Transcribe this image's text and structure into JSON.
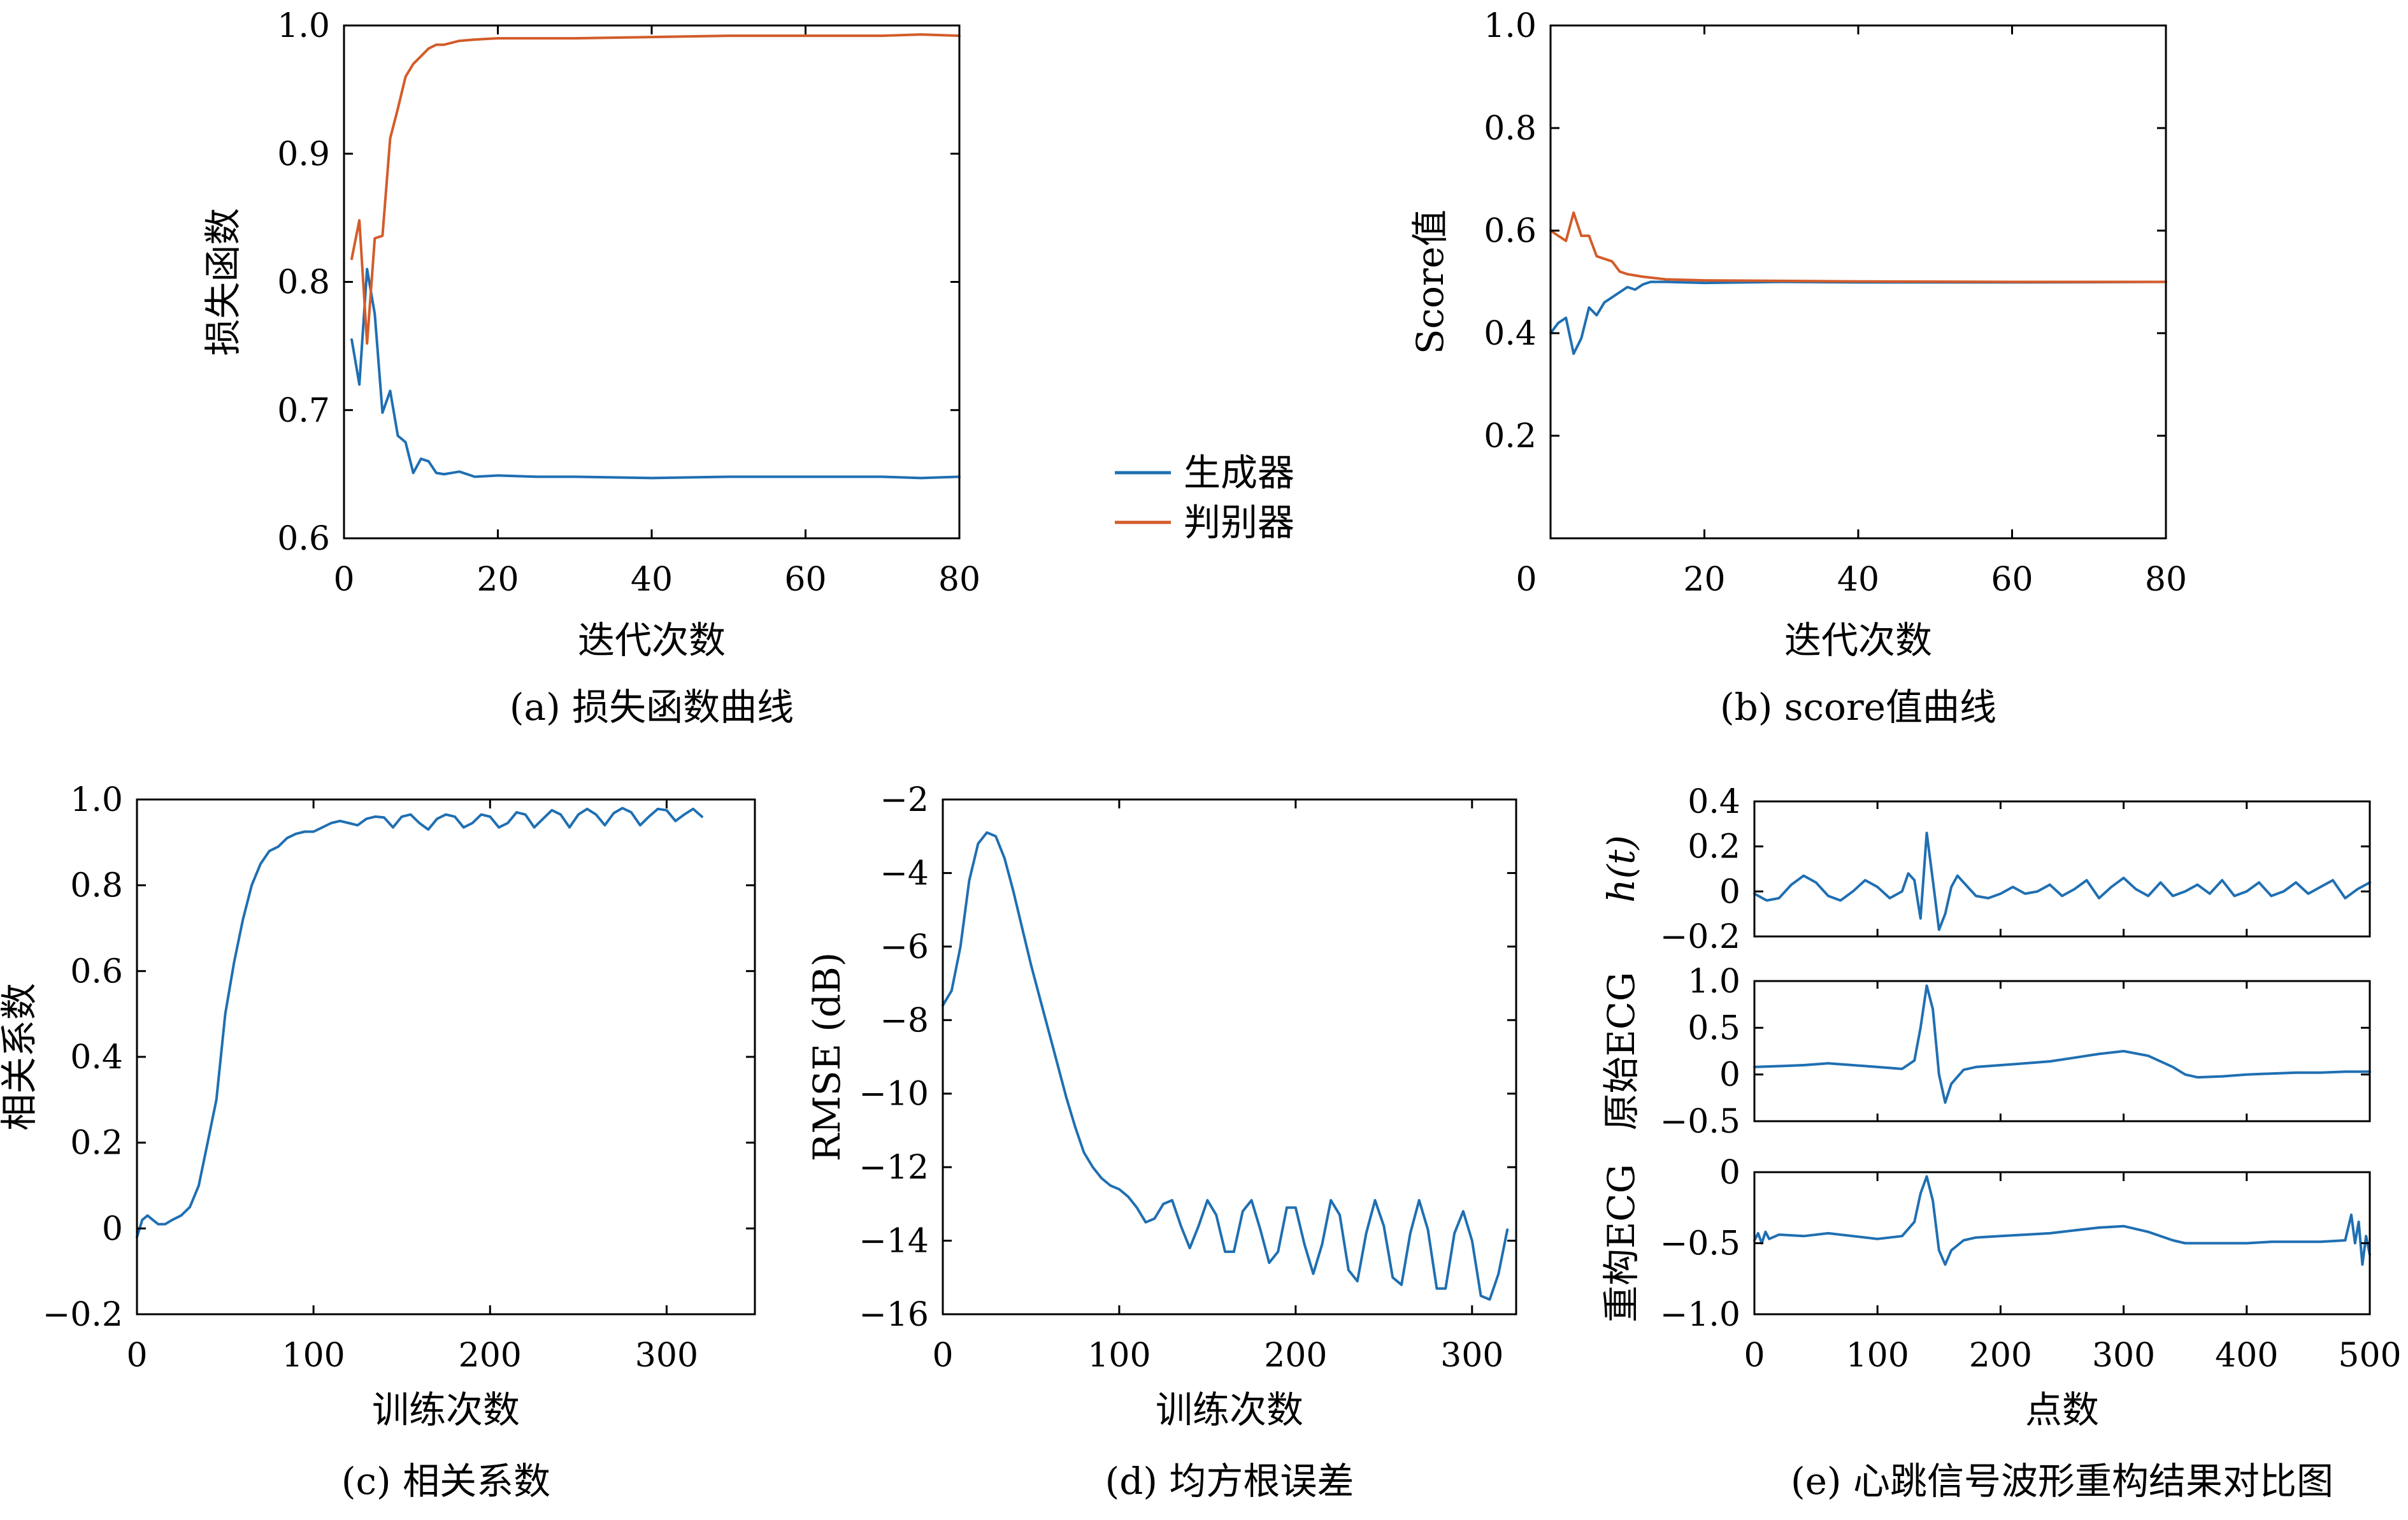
{
  "colors": {
    "blue": "#1f6fb2",
    "orange": "#d35c2a"
  },
  "chart_data": [
    {
      "id": "a",
      "type": "line",
      "caption": "(a) 损失函数曲线",
      "xlabel": "迭代次数",
      "ylabel": "损失函数",
      "xlim": [
        0,
        80
      ],
      "ylim": [
        0.6,
        1.0
      ],
      "xticks": [
        0,
        20,
        40,
        60,
        80
      ],
      "xtick_labels": [
        "0",
        "20",
        "40",
        "60",
        "80"
      ],
      "yticks": [
        0.6,
        0.7,
        0.8,
        0.9,
        1.0
      ],
      "ytick_labels": [
        "0.6",
        "0.7",
        "0.8",
        "0.9",
        "1.0"
      ],
      "grid": false,
      "legend_position": "outside-right",
      "series": [
        {
          "name": "生成器",
          "color": "#1f6fb2",
          "x": [
            1,
            2,
            3,
            4,
            5,
            6,
            7,
            8,
            9,
            10,
            11,
            12,
            13,
            15,
            17,
            20,
            25,
            30,
            40,
            50,
            60,
            70,
            75,
            80
          ],
          "y": [
            0.755,
            0.72,
            0.81,
            0.775,
            0.698,
            0.715,
            0.68,
            0.675,
            0.651,
            0.662,
            0.66,
            0.651,
            0.65,
            0.652,
            0.648,
            0.649,
            0.648,
            0.648,
            0.647,
            0.648,
            0.648,
            0.648,
            0.647,
            0.648
          ]
        },
        {
          "name": "判别器",
          "color": "#d35c2a",
          "x": [
            1,
            2,
            3,
            4,
            5,
            6,
            7,
            8,
            9,
            10,
            11,
            12,
            13,
            15,
            17,
            20,
            25,
            30,
            40,
            50,
            60,
            70,
            75,
            80
          ],
          "y": [
            0.818,
            0.848,
            0.752,
            0.834,
            0.836,
            0.912,
            0.935,
            0.96,
            0.97,
            0.976,
            0.982,
            0.985,
            0.985,
            0.988,
            0.989,
            0.99,
            0.99,
            0.99,
            0.991,
            0.992,
            0.992,
            0.992,
            0.993,
            0.992
          ]
        }
      ]
    },
    {
      "id": "b",
      "type": "line",
      "caption": "(b) score值曲线",
      "xlabel": "迭代次数",
      "ylabel": "Score值",
      "xlim": [
        0,
        80
      ],
      "ylim": [
        0,
        1.0
      ],
      "xticks": [
        20,
        40,
        60,
        80
      ],
      "xtick_labels": [
        "20",
        "40",
        "60",
        "80"
      ],
      "corner_label": "0",
      "yticks": [
        0.2,
        0.4,
        0.6,
        0.8,
        1.0
      ],
      "ytick_labels": [
        "0.2",
        "0.4",
        "0.6",
        "0.8",
        "1.0"
      ],
      "grid": false,
      "series": [
        {
          "color": "#1f6fb2",
          "x": [
            0,
            1,
            2,
            3,
            4,
            5,
            6,
            7,
            8,
            9,
            10,
            11,
            12,
            13,
            15,
            20,
            30,
            40,
            60,
            80
          ],
          "y": [
            0.4,
            0.42,
            0.43,
            0.36,
            0.39,
            0.45,
            0.435,
            0.46,
            0.47,
            0.48,
            0.49,
            0.485,
            0.495,
            0.5,
            0.5,
            0.498,
            0.5,
            0.499,
            0.499,
            0.5
          ]
        },
        {
          "color": "#d35c2a",
          "x": [
            0,
            1,
            2,
            3,
            4,
            5,
            6,
            7,
            8,
            9,
            10,
            12,
            15,
            20,
            30,
            40,
            60,
            80
          ],
          "y": [
            0.6,
            0.59,
            0.58,
            0.635,
            0.59,
            0.59,
            0.55,
            0.545,
            0.54,
            0.52,
            0.515,
            0.51,
            0.505,
            0.503,
            0.502,
            0.501,
            0.5,
            0.5
          ]
        }
      ]
    },
    {
      "id": "c",
      "type": "line",
      "caption": "(c) 相关系数",
      "xlabel": "训练次数",
      "ylabel": "相关系数",
      "xlim": [
        0,
        350
      ],
      "ylim": [
        -0.2,
        1.0
      ],
      "xticks": [
        0,
        100,
        200,
        300
      ],
      "xtick_labels": [
        "0",
        "100",
        "200",
        "300"
      ],
      "yticks": [
        -0.2,
        0,
        0.2,
        0.4,
        0.6,
        0.8,
        1.0
      ],
      "ytick_labels": [
        "−0.2",
        "0",
        "0.2",
        "0.4",
        "0.6",
        "0.8",
        "1.0"
      ],
      "grid": false,
      "series": [
        {
          "color": "#1f6fb2",
          "x": [
            0,
            3,
            6,
            9,
            12,
            16,
            20,
            25,
            30,
            35,
            40,
            45,
            50,
            55,
            60,
            65,
            70,
            75,
            80,
            85,
            90,
            95,
            100,
            105,
            110,
            115,
            120,
            125,
            130,
            135,
            140,
            145,
            150,
            155,
            160,
            165,
            170,
            175,
            180,
            185,
            190,
            195,
            200,
            205,
            210,
            215,
            220,
            225,
            230,
            235,
            240,
            245,
            250,
            255,
            260,
            265,
            270,
            275,
            280,
            285,
            290,
            295,
            300,
            305,
            310,
            315,
            320
          ],
          "y": [
            -0.02,
            0.02,
            0.03,
            0.02,
            0.01,
            0.01,
            0.02,
            0.03,
            0.05,
            0.1,
            0.2,
            0.3,
            0.5,
            0.62,
            0.72,
            0.8,
            0.85,
            0.88,
            0.89,
            0.91,
            0.92,
            0.925,
            0.925,
            0.935,
            0.945,
            0.95,
            0.945,
            0.94,
            0.955,
            0.96,
            0.958,
            0.935,
            0.96,
            0.965,
            0.945,
            0.93,
            0.955,
            0.965,
            0.96,
            0.935,
            0.945,
            0.965,
            0.96,
            0.935,
            0.945,
            0.97,
            0.965,
            0.935,
            0.955,
            0.975,
            0.965,
            0.935,
            0.965,
            0.978,
            0.965,
            0.94,
            0.968,
            0.98,
            0.97,
            0.94,
            0.96,
            0.978,
            0.975,
            0.95,
            0.965,
            0.978,
            0.96
          ]
        }
      ]
    },
    {
      "id": "d",
      "type": "line",
      "caption": "(d) 均方根误差",
      "xlabel": "训练次数",
      "ylabel": "RMSE (dB)",
      "xlim": [
        0,
        325
      ],
      "ylim": [
        -16,
        -2
      ],
      "xticks": [
        0,
        100,
        200,
        300
      ],
      "xtick_labels": [
        "0",
        "100",
        "200",
        "300"
      ],
      "yticks": [
        -16,
        -14,
        -12,
        -10,
        -8,
        -6,
        -4,
        -2
      ],
      "ytick_labels": [
        "−16",
        "−14",
        "−12",
        "−10",
        "−8",
        "−6",
        "−4",
        "−2"
      ],
      "grid": false,
      "series": [
        {
          "color": "#1f6fb2",
          "x": [
            0,
            5,
            10,
            15,
            20,
            25,
            30,
            35,
            40,
            45,
            50,
            55,
            60,
            65,
            70,
            75,
            80,
            85,
            90,
            95,
            100,
            105,
            110,
            115,
            120,
            125,
            130,
            135,
            140,
            145,
            150,
            155,
            160,
            165,
            170,
            175,
            180,
            185,
            190,
            195,
            200,
            205,
            210,
            215,
            220,
            225,
            230,
            235,
            240,
            245,
            250,
            255,
            260,
            265,
            270,
            275,
            280,
            285,
            290,
            295,
            300,
            305,
            310,
            315,
            320
          ],
          "y": [
            -7.6,
            -7.2,
            -6,
            -4.2,
            -3.2,
            -2.9,
            -3,
            -3.6,
            -4.5,
            -5.5,
            -6.5,
            -7.4,
            -8.3,
            -9.2,
            -10.1,
            -10.9,
            -11.6,
            -12,
            -12.3,
            -12.5,
            -12.6,
            -12.8,
            -13.1,
            -13.5,
            -13.4,
            -13,
            -12.9,
            -13.6,
            -14.2,
            -13.6,
            -12.9,
            -13.3,
            -14.3,
            -14.3,
            -13.2,
            -12.9,
            -13.7,
            -14.6,
            -14.3,
            -13.1,
            -13.1,
            -14.1,
            -14.9,
            -14.1,
            -12.9,
            -13.3,
            -14.8,
            -15.1,
            -13.8,
            -12.9,
            -13.6,
            -15,
            -15.2,
            -13.8,
            -12.9,
            -13.7,
            -15.3,
            -15.3,
            -13.8,
            -13.2,
            -14,
            -15.5,
            -15.6,
            -14.9,
            -13.7
          ]
        }
      ]
    },
    {
      "id": "e1",
      "type": "line",
      "xlabel": "",
      "ylabel": "h(t)",
      "xlim": [
        0,
        500
      ],
      "ylim": [
        -0.2,
        0.4
      ],
      "yticks": [
        -0.2,
        0,
        0.2,
        0.4
      ],
      "ytick_labels": [
        "−0.2",
        "0",
        "0.2",
        "0.4"
      ],
      "series": [
        {
          "color": "#1f6fb2",
          "x": [
            0,
            10,
            20,
            30,
            40,
            50,
            60,
            70,
            80,
            90,
            100,
            110,
            120,
            125,
            130,
            135,
            140,
            145,
            150,
            155,
            160,
            165,
            170,
            180,
            190,
            200,
            210,
            220,
            230,
            240,
            250,
            260,
            270,
            280,
            290,
            300,
            310,
            320,
            330,
            340,
            350,
            360,
            370,
            380,
            390,
            400,
            410,
            420,
            430,
            440,
            450,
            460,
            470,
            480,
            490,
            500
          ],
          "y": [
            -0.01,
            -0.04,
            -0.03,
            0.03,
            0.07,
            0.04,
            -0.02,
            -0.04,
            0.0,
            0.05,
            0.02,
            -0.03,
            0.0,
            0.08,
            0.05,
            -0.12,
            0.26,
            0.05,
            -0.17,
            -0.1,
            0.02,
            0.07,
            0.04,
            -0.02,
            -0.03,
            -0.01,
            0.02,
            -0.01,
            0.0,
            0.03,
            -0.02,
            0.01,
            0.05,
            -0.03,
            0.02,
            0.06,
            0.01,
            -0.02,
            0.04,
            -0.02,
            0.0,
            0.03,
            -0.01,
            0.05,
            -0.02,
            0.0,
            0.04,
            -0.02,
            0.0,
            0.04,
            -0.01,
            0.02,
            0.05,
            -0.03,
            0.01,
            0.04
          ]
        }
      ]
    },
    {
      "id": "e2",
      "type": "line",
      "xlabel": "",
      "ylabel": "原始ECG",
      "xlim": [
        0,
        500
      ],
      "ylim": [
        -0.5,
        1.0
      ],
      "yticks": [
        -0.5,
        0,
        0.5,
        1.0
      ],
      "ytick_labels": [
        "−0.5",
        "0",
        "0.5",
        "1.0"
      ],
      "series": [
        {
          "color": "#1f6fb2",
          "x": [
            0,
            20,
            40,
            60,
            80,
            100,
            120,
            130,
            135,
            140,
            145,
            150,
            155,
            160,
            170,
            180,
            200,
            220,
            240,
            260,
            280,
            300,
            320,
            340,
            350,
            360,
            380,
            400,
            420,
            440,
            460,
            480,
            500
          ],
          "y": [
            0.08,
            0.09,
            0.1,
            0.12,
            0.1,
            0.08,
            0.06,
            0.15,
            0.5,
            0.95,
            0.7,
            0.0,
            -0.3,
            -0.1,
            0.05,
            0.08,
            0.1,
            0.12,
            0.14,
            0.18,
            0.22,
            0.25,
            0.2,
            0.08,
            0.0,
            -0.03,
            -0.02,
            0.0,
            0.01,
            0.02,
            0.02,
            0.03,
            0.03
          ]
        }
      ]
    },
    {
      "id": "e3",
      "type": "line",
      "caption": "(e) 心跳信号波形重构结果对比图",
      "xlabel": "点数",
      "ylabel": "重构ECG",
      "xlim": [
        0,
        500
      ],
      "ylim": [
        -1.0,
        0
      ],
      "xticks": [
        0,
        100,
        200,
        300,
        400,
        500
      ],
      "xtick_labels": [
        "0",
        "100",
        "200",
        "300",
        "400",
        "500"
      ],
      "yticks": [
        -1.0,
        -0.5,
        0
      ],
      "ytick_labels": [
        "−1.0",
        "−0.5",
        "0"
      ],
      "series": [
        {
          "color": "#1f6fb2",
          "x": [
            0,
            3,
            6,
            9,
            12,
            20,
            40,
            60,
            80,
            100,
            120,
            130,
            135,
            140,
            145,
            150,
            155,
            160,
            170,
            180,
            200,
            220,
            240,
            260,
            280,
            300,
            320,
            340,
            350,
            360,
            380,
            400,
            420,
            440,
            460,
            480,
            485,
            488,
            491,
            494,
            497,
            500
          ],
          "y": [
            -0.48,
            -0.43,
            -0.5,
            -0.42,
            -0.47,
            -0.44,
            -0.45,
            -0.43,
            -0.45,
            -0.47,
            -0.45,
            -0.35,
            -0.15,
            -0.03,
            -0.2,
            -0.55,
            -0.65,
            -0.55,
            -0.48,
            -0.46,
            -0.45,
            -0.44,
            -0.43,
            -0.41,
            -0.39,
            -0.38,
            -0.42,
            -0.48,
            -0.5,
            -0.5,
            -0.5,
            -0.5,
            -0.49,
            -0.49,
            -0.49,
            -0.48,
            -0.3,
            -0.5,
            -0.35,
            -0.65,
            -0.45,
            -0.58
          ]
        }
      ]
    }
  ],
  "legend": [
    {
      "label": "生成器",
      "color": "#1f6fb2"
    },
    {
      "label": "判别器",
      "color": "#d35c2a"
    }
  ]
}
